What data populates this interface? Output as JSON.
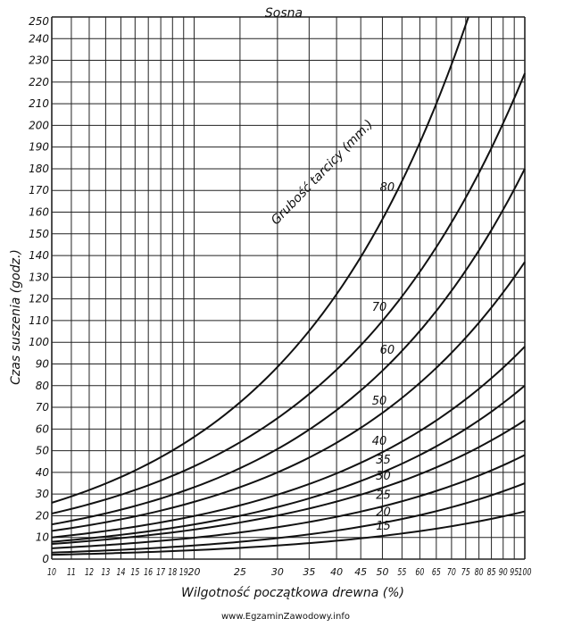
{
  "chart_data": {
    "type": "line",
    "title": "Sosna",
    "xlabel": "Wilgotność początkowa drewna (%)",
    "ylabel": "Czas suszenia (godz.)",
    "legend_title": "Grubość tarcicy (mm.)",
    "x_scale": "log",
    "xlim": [
      10,
      100
    ],
    "ylim": [
      0,
      250
    ],
    "grid": true,
    "x_ticks": [
      10,
      11,
      12,
      13,
      14,
      15,
      16,
      17,
      18,
      19,
      20,
      25,
      30,
      35,
      40,
      45,
      50,
      55,
      60,
      65,
      70,
      75,
      80,
      85,
      90,
      95,
      100
    ],
    "x_tick_labels": [
      "10",
      "11",
      "12",
      "13",
      "14",
      "15",
      "16",
      "17",
      "18",
      "19",
      "20",
      "25",
      "30",
      "35",
      "40",
      "45",
      "50",
      "55",
      "60",
      "65",
      "70",
      "75",
      "80",
      "85",
      "90",
      "95",
      "100"
    ],
    "y_ticks": [
      0,
      10,
      20,
      30,
      40,
      50,
      60,
      70,
      80,
      90,
      100,
      110,
      120,
      130,
      140,
      150,
      160,
      170,
      180,
      190,
      200,
      210,
      220,
      230,
      240,
      250
    ],
    "y_tick_labels": [
      "0",
      "10",
      "20",
      "30",
      "40",
      "50",
      "60",
      "70",
      "80",
      "90",
      "100",
      "110",
      "120",
      "130",
      "140",
      "150",
      "160",
      "170",
      "180",
      "190",
      "200",
      "210",
      "220",
      "230",
      "240",
      "250"
    ],
    "series": [
      {
        "name": "15",
        "x": [
          10,
          100
        ],
        "y": [
          2,
          22
        ],
        "label_x": 52
      },
      {
        "name": "20",
        "x": [
          10,
          100
        ],
        "y": [
          3,
          35
        ],
        "label_x": 52
      },
      {
        "name": "25",
        "x": [
          10,
          100
        ],
        "y": [
          5,
          48
        ],
        "label_x": 52
      },
      {
        "name": "30",
        "x": [
          10,
          100
        ],
        "y": [
          7,
          64
        ],
        "label_x": 52
      },
      {
        "name": "35",
        "x": [
          10,
          100
        ],
        "y": [
          8,
          80
        ],
        "label_x": 52
      },
      {
        "name": "40",
        "x": [
          10,
          100
        ],
        "y": [
          10,
          98
        ],
        "label_x": 51
      },
      {
        "name": "50",
        "x": [
          10,
          100
        ],
        "y": [
          13,
          137
        ],
        "label_x": 51
      },
      {
        "name": "60",
        "x": [
          10,
          100
        ],
        "y": [
          16,
          180
        ],
        "label_x": 53
      },
      {
        "name": "70",
        "x": [
          10,
          100
        ],
        "y": [
          21,
          224
        ],
        "label_x": 51
      },
      {
        "name": "80",
        "x": [
          10,
          76
        ],
        "y": [
          26,
          250
        ],
        "label_x": 53
      }
    ]
  },
  "footer": "www.EgzaminZawodowy.info"
}
